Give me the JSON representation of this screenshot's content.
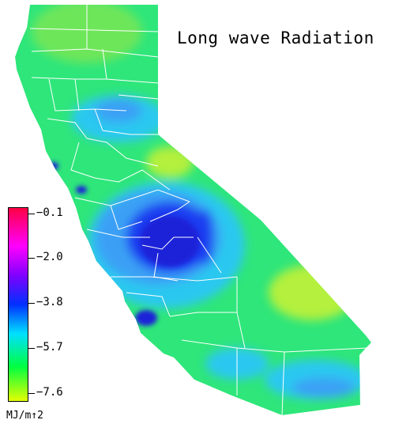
{
  "title": "Long wave Radiation",
  "legend": {
    "unit": "MJ/m↑2",
    "ticks": [
      "−0.1",
      "−2.0",
      "−3.8",
      "−5.7",
      "−7.6"
    ],
    "colors": {
      "top": "#ff0040",
      "magenta": "#ff00ff",
      "purple": "#8000ff",
      "blue": "#0030ff",
      "cyan": "#00e0ff",
      "green": "#00ff40",
      "bottom": "#e8ff00"
    }
  },
  "map_colors": {
    "base_green": "#2ee67a",
    "light_green": "#6ee65a",
    "yellow_green": "#b4f03c",
    "cyan": "#2cc8f0",
    "light_blue": "#3aa0f5",
    "blue": "#1a3cf0",
    "deep_blue": "#1a20d8",
    "boundary": "#ffffff"
  }
}
